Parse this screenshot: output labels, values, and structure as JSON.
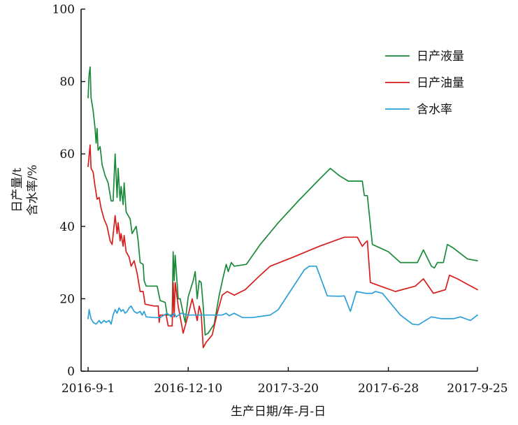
{
  "chart_data": {
    "type": "line",
    "xlabel": "生产日期/年-月-日",
    "ylabel_lines": [
      "日产量/t",
      "含水率/%"
    ],
    "x_start_date": "2016-09-01",
    "xlim": [
      "2016-08-25",
      "2017-09-25"
    ],
    "ylim": [
      0,
      100
    ],
    "x_ticks": [
      "2016-09-01",
      "2016-12-10",
      "2017-03-20",
      "2017-06-28",
      "2017-09-25"
    ],
    "x_tick_labels": [
      "2016-9-1",
      "2016-12-10",
      "2017-3-20",
      "2017-6-28",
      "2017-9-25"
    ],
    "y_ticks": [
      0,
      20,
      40,
      60,
      80,
      100
    ],
    "y_tick_labels": [
      "0",
      "20",
      "40",
      "60",
      "80",
      "100"
    ],
    "legend_position": "top-right",
    "grid": false,
    "series": [
      {
        "name": "日产液量",
        "color": "#1a8a3a",
        "points": [
          [
            "2016-09-01",
            75.5
          ],
          [
            "2016-09-02",
            82.0
          ],
          [
            "2016-09-03",
            84.0
          ],
          [
            "2016-09-04",
            75.5
          ],
          [
            "2016-09-06",
            72.0
          ],
          [
            "2016-09-08",
            67.0
          ],
          [
            "2016-09-09",
            63.0
          ],
          [
            "2016-09-10",
            67.0
          ],
          [
            "2016-09-11",
            61.0
          ],
          [
            "2016-09-13",
            62.0
          ],
          [
            "2016-09-15",
            57.0
          ],
          [
            "2016-09-18",
            54.0
          ],
          [
            "2016-09-21",
            52.0
          ],
          [
            "2016-09-24",
            47.0
          ],
          [
            "2016-09-26",
            47.0
          ],
          [
            "2016-09-28",
            60.0
          ],
          [
            "2016-09-30",
            48.0
          ],
          [
            "2016-10-01",
            56.0
          ],
          [
            "2016-10-03",
            47.0
          ],
          [
            "2016-10-04",
            51.0
          ],
          [
            "2016-10-06",
            46.0
          ],
          [
            "2016-10-07",
            52.0
          ],
          [
            "2016-10-09",
            44.0
          ],
          [
            "2016-10-13",
            42.0
          ],
          [
            "2016-10-15",
            38.0
          ],
          [
            "2016-10-19",
            40.0
          ],
          [
            "2016-10-21",
            36.0
          ],
          [
            "2016-10-23",
            30.0
          ],
          [
            "2016-10-26",
            29.5
          ],
          [
            "2016-10-27",
            25.0
          ],
          [
            "2016-10-29",
            23.5
          ],
          [
            "2016-11-06",
            23.5
          ],
          [
            "2016-11-09",
            23.5
          ],
          [
            "2016-11-12",
            19.5
          ],
          [
            "2016-11-17",
            19.0
          ],
          [
            "2016-11-19",
            15.5
          ],
          [
            "2016-11-24",
            15.5
          ],
          [
            "2016-11-25",
            33.0
          ],
          [
            "2016-11-26",
            25.0
          ],
          [
            "2016-11-27",
            32.0
          ],
          [
            "2016-11-30",
            20.0
          ],
          [
            "2016-12-02",
            20.0
          ],
          [
            "2016-12-05",
            16.0
          ],
          [
            "2016-12-07",
            13.5
          ],
          [
            "2016-12-10",
            20.5
          ],
          [
            "2016-12-15",
            25.0
          ],
          [
            "2016-12-17",
            27.5
          ],
          [
            "2016-12-19",
            20.0
          ],
          [
            "2016-12-21",
            25.0
          ],
          [
            "2016-12-23",
            24.5
          ],
          [
            "2016-12-25",
            18.0
          ],
          [
            "2016-12-27",
            10.0
          ],
          [
            "2016-12-30",
            10.5
          ],
          [
            "2017-01-05",
            13.0
          ],
          [
            "2017-01-10",
            21.0
          ],
          [
            "2017-01-14",
            26.0
          ],
          [
            "2017-01-17",
            29.5
          ],
          [
            "2017-01-19",
            27.5
          ],
          [
            "2017-01-22",
            30.0
          ],
          [
            "2017-01-25",
            29.0
          ],
          [
            "2017-02-06",
            29.5
          ],
          [
            "2017-02-20",
            35.0
          ],
          [
            "2017-03-10",
            41.0
          ],
          [
            "2017-03-30",
            47.0
          ],
          [
            "2017-04-20",
            53.0
          ],
          [
            "2017-05-01",
            56.0
          ],
          [
            "2017-05-10",
            54.0
          ],
          [
            "2017-05-19",
            52.5
          ],
          [
            "2017-05-27",
            52.5
          ],
          [
            "2017-06-02",
            52.5
          ],
          [
            "2017-06-04",
            48.5
          ],
          [
            "2017-06-07",
            48.5
          ],
          [
            "2017-06-12",
            35.0
          ],
          [
            "2017-06-28",
            33.0
          ],
          [
            "2017-07-10",
            30.0
          ],
          [
            "2017-07-27",
            30.0
          ],
          [
            "2017-08-02",
            33.5
          ],
          [
            "2017-08-10",
            29.0
          ],
          [
            "2017-08-13",
            28.5
          ],
          [
            "2017-08-16",
            30.0
          ],
          [
            "2017-08-22",
            30.0
          ],
          [
            "2017-08-26",
            35.0
          ],
          [
            "2017-09-01",
            34.0
          ],
          [
            "2017-09-15",
            31.0
          ],
          [
            "2017-09-25",
            30.5
          ]
        ]
      },
      {
        "name": "日产油量",
        "color": "#d81d1d",
        "points": [
          [
            "2016-09-01",
            56.5
          ],
          [
            "2016-09-03",
            62.5
          ],
          [
            "2016-09-04",
            56.0
          ],
          [
            "2016-09-06",
            55.0
          ],
          [
            "2016-09-08",
            51.0
          ],
          [
            "2016-09-10",
            47.5
          ],
          [
            "2016-09-12",
            48.0
          ],
          [
            "2016-09-14",
            45.0
          ],
          [
            "2016-09-17",
            42.0
          ],
          [
            "2016-09-20",
            40.0
          ],
          [
            "2016-09-23",
            36.0
          ],
          [
            "2016-09-25",
            35.0
          ],
          [
            "2016-09-28",
            43.0
          ],
          [
            "2016-09-30",
            38.0
          ],
          [
            "2016-10-01",
            41.0
          ],
          [
            "2016-10-03",
            36.0
          ],
          [
            "2016-10-04",
            38.0
          ],
          [
            "2016-10-06",
            34.5
          ],
          [
            "2016-10-07",
            37.5
          ],
          [
            "2016-10-09",
            33.0
          ],
          [
            "2016-10-12",
            31.5
          ],
          [
            "2016-10-14",
            29.0
          ],
          [
            "2016-10-17",
            30.5
          ],
          [
            "2016-10-20",
            27.0
          ],
          [
            "2016-10-23",
            22.0
          ],
          [
            "2016-10-26",
            22.0
          ],
          [
            "2016-10-28",
            18.5
          ],
          [
            "2016-11-06",
            18.0
          ],
          [
            "2016-11-10",
            18.0
          ],
          [
            "2016-11-11",
            13.5
          ],
          [
            "2016-11-12",
            15.5
          ],
          [
            "2016-11-18",
            15.5
          ],
          [
            "2016-11-20",
            12.5
          ],
          [
            "2016-11-24",
            12.5
          ],
          [
            "2016-11-25",
            24.5
          ],
          [
            "2016-11-26",
            15.0
          ],
          [
            "2016-11-27",
            24.5
          ],
          [
            "2016-11-30",
            18.0
          ],
          [
            "2016-12-03",
            13.5
          ],
          [
            "2016-12-05",
            10.5
          ],
          [
            "2016-12-10",
            15.5
          ],
          [
            "2016-12-14",
            20.0
          ],
          [
            "2016-12-16",
            17.5
          ],
          [
            "2016-12-19",
            14.0
          ],
          [
            "2016-12-21",
            18.0
          ],
          [
            "2016-12-23",
            16.0
          ],
          [
            "2016-12-25",
            6.5
          ],
          [
            "2016-12-28",
            8.0
          ],
          [
            "2017-01-03",
            10.0
          ],
          [
            "2017-01-08",
            16.0
          ],
          [
            "2017-01-13",
            21.0
          ],
          [
            "2017-01-18",
            22.0
          ],
          [
            "2017-01-25",
            21.0
          ],
          [
            "2017-02-05",
            22.5
          ],
          [
            "2017-02-20",
            26.5
          ],
          [
            "2017-03-02",
            29.0
          ],
          [
            "2017-03-25",
            31.5
          ],
          [
            "2017-04-20",
            34.5
          ],
          [
            "2017-05-15",
            37.0
          ],
          [
            "2017-05-28",
            37.0
          ],
          [
            "2017-06-02",
            34.5
          ],
          [
            "2017-06-05",
            35.5
          ],
          [
            "2017-06-07",
            36.0
          ],
          [
            "2017-06-10",
            24.5
          ],
          [
            "2017-06-20",
            23.5
          ],
          [
            "2017-07-05",
            22.0
          ],
          [
            "2017-07-25",
            23.5
          ],
          [
            "2017-08-02",
            25.5
          ],
          [
            "2017-08-12",
            21.5
          ],
          [
            "2017-08-18",
            22.0
          ],
          [
            "2017-08-24",
            22.5
          ],
          [
            "2017-08-28",
            26.5
          ],
          [
            "2017-09-05",
            25.5
          ],
          [
            "2017-09-15",
            24.0
          ],
          [
            "2017-09-25",
            22.5
          ]
        ]
      },
      {
        "name": "含水率",
        "color": "#2aa0d8",
        "points": [
          [
            "2016-09-01",
            14.5
          ],
          [
            "2016-09-02",
            17.0
          ],
          [
            "2016-09-04",
            14.5
          ],
          [
            "2016-09-06",
            13.5
          ],
          [
            "2016-09-09",
            13.0
          ],
          [
            "2016-09-12",
            14.0
          ],
          [
            "2016-09-14",
            13.2
          ],
          [
            "2016-09-17",
            14.0
          ],
          [
            "2016-09-19",
            13.5
          ],
          [
            "2016-09-22",
            14.0
          ],
          [
            "2016-09-24",
            13.0
          ],
          [
            "2016-09-26",
            15.5
          ],
          [
            "2016-09-28",
            17.0
          ],
          [
            "2016-09-30",
            16.0
          ],
          [
            "2016-10-02",
            17.5
          ],
          [
            "2016-10-04",
            16.5
          ],
          [
            "2016-10-06",
            17.0
          ],
          [
            "2016-10-08",
            16.0
          ],
          [
            "2016-10-10",
            16.5
          ],
          [
            "2016-10-12",
            17.5
          ],
          [
            "2016-10-14",
            18.0
          ],
          [
            "2016-10-17",
            16.5
          ],
          [
            "2016-10-20",
            16.0
          ],
          [
            "2016-10-23",
            16.5
          ],
          [
            "2016-10-25",
            15.5
          ],
          [
            "2016-10-27",
            16.5
          ],
          [
            "2016-10-29",
            15.0
          ],
          [
            "2016-11-06",
            14.8
          ],
          [
            "2016-11-12",
            14.8
          ],
          [
            "2016-11-16",
            15.5
          ],
          [
            "2016-11-19",
            16.0
          ],
          [
            "2016-11-23",
            15.0
          ],
          [
            "2016-11-26",
            16.0
          ],
          [
            "2016-11-28",
            15.0
          ],
          [
            "2016-12-03",
            16.0
          ],
          [
            "2016-12-10",
            15.5
          ],
          [
            "2016-12-30",
            15.5
          ],
          [
            "2017-01-13",
            15.5
          ],
          [
            "2017-01-17",
            16.0
          ],
          [
            "2017-01-20",
            15.3
          ],
          [
            "2017-01-25",
            16.0
          ],
          [
            "2017-02-02",
            14.8
          ],
          [
            "2017-02-12",
            14.8
          ],
          [
            "2017-03-02",
            15.5
          ],
          [
            "2017-03-10",
            17.0
          ],
          [
            "2017-04-05",
            28.0
          ],
          [
            "2017-04-10",
            29.0
          ],
          [
            "2017-04-17",
            29.0
          ],
          [
            "2017-04-28",
            20.8
          ],
          [
            "2017-05-10",
            20.7
          ],
          [
            "2017-05-15",
            20.8
          ],
          [
            "2017-05-21",
            16.5
          ],
          [
            "2017-05-27",
            22.0
          ],
          [
            "2017-06-05",
            21.5
          ],
          [
            "2017-06-12",
            21.5
          ],
          [
            "2017-06-15",
            22.0
          ],
          [
            "2017-06-22",
            21.5
          ],
          [
            "2017-07-10",
            15.5
          ],
          [
            "2017-07-22",
            13.0
          ],
          [
            "2017-07-28",
            12.8
          ],
          [
            "2017-08-10",
            15.0
          ],
          [
            "2017-08-20",
            14.5
          ],
          [
            "2017-09-01",
            14.5
          ],
          [
            "2017-09-08",
            15.0
          ],
          [
            "2017-09-18",
            14.0
          ],
          [
            "2017-09-25",
            15.5
          ]
        ]
      }
    ]
  }
}
